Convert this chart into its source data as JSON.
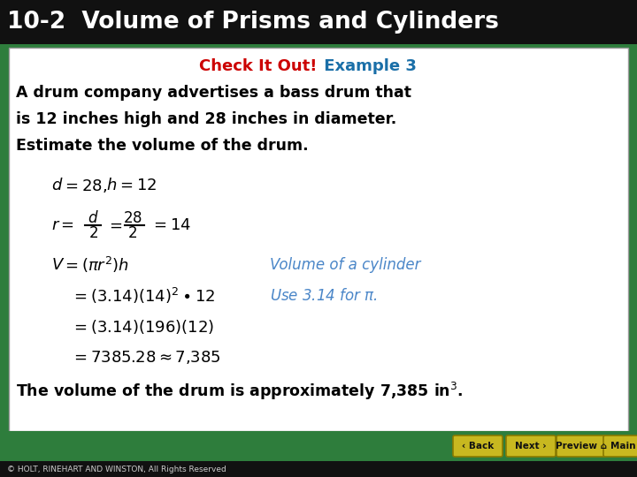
{
  "title": "10-2  Volume of Prisms and Cylinders",
  "title_color": "#ffffff",
  "title_bg_color": "#111111",
  "header_check": "Check It Out!",
  "header_check_color": "#cc0000",
  "header_example": " Example 3",
  "header_example_color": "#1a6fa8",
  "problem_text_lines": [
    "A drum company advertises a bass drum that",
    "is 12 inches high and 28 inches in diameter.",
    "Estimate the volume of the drum."
  ],
  "content_bg": "#ffffff",
  "green_bg": "#2e7d3c",
  "black_bar_color": "#111111",
  "footer_text": "© HOLT, RINEHART AND WINSTON, All Rights Reserved",
  "footer_color": "#cccccc",
  "italic_color": "#4a86c8",
  "main_text_color": "#000000",
  "button_labels": [
    "Back",
    "Next",
    "Preview",
    "Main"
  ],
  "button_color": "#c8b820",
  "button_edge_color": "#8a7a00"
}
